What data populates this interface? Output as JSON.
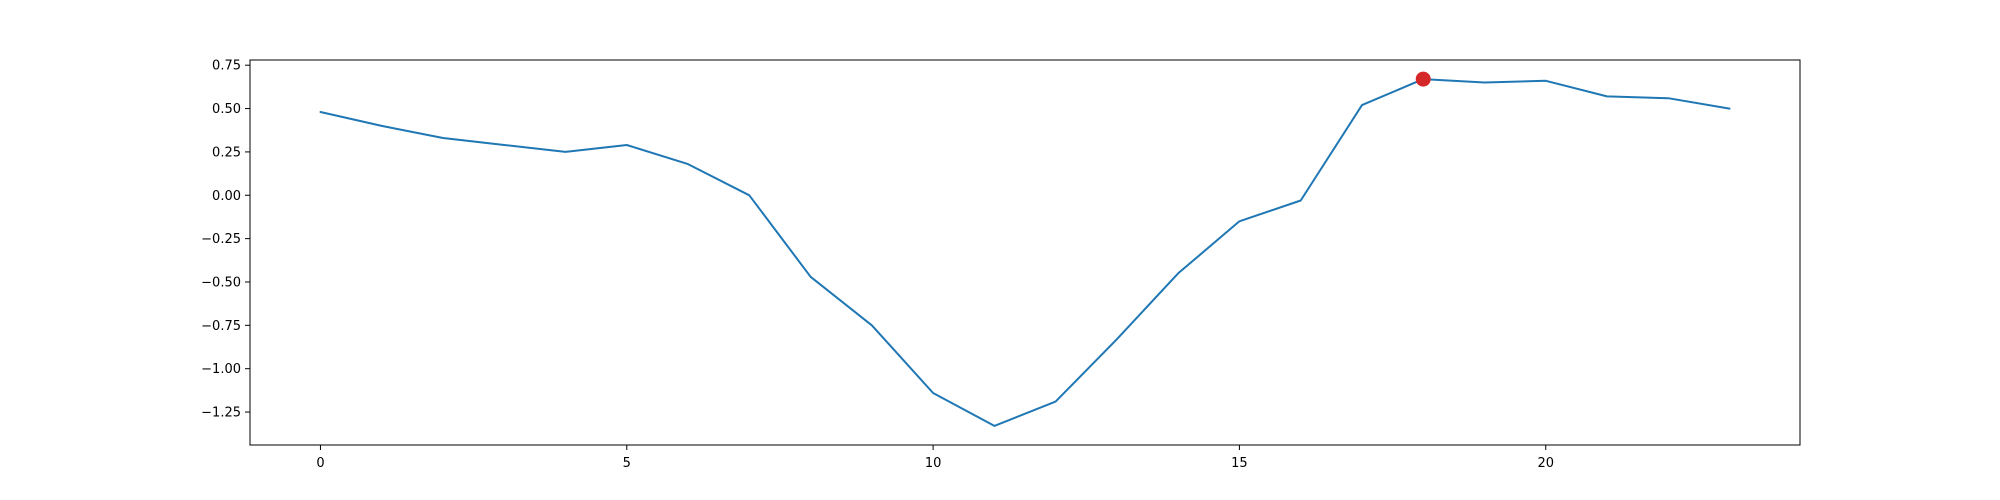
{
  "chart_data": {
    "type": "line",
    "title": "",
    "xlabel": "",
    "ylabel": "",
    "xlim": [
      -1.15,
      24.15
    ],
    "ylim": [
      -1.44,
      0.78
    ],
    "x_ticks": [
      0,
      5,
      10,
      15,
      20
    ],
    "x_tick_labels": [
      "0",
      "5",
      "10",
      "15",
      "20"
    ],
    "y_ticks": [
      0.75,
      0.5,
      0.25,
      0.0,
      -0.25,
      -0.5,
      -0.75,
      -1.0,
      -1.25
    ],
    "y_tick_labels": [
      "0.75",
      "0.50",
      "0.25",
      "0.00",
      "−0.25",
      "−0.50",
      "−0.75",
      "−1.00",
      "−1.25"
    ],
    "grid": false,
    "series": [
      {
        "color": "#1f77b4",
        "x": [
          0,
          1,
          2,
          3,
          4,
          5,
          6,
          7,
          8,
          9,
          10,
          11,
          12,
          13,
          14,
          15,
          16,
          17,
          18,
          19,
          20,
          21,
          22,
          23
        ],
        "values": [
          0.48,
          0.4,
          0.33,
          0.29,
          0.25,
          0.29,
          0.18,
          0.0,
          -0.47,
          -0.75,
          -1.14,
          -1.33,
          -1.19,
          -0.83,
          -0.45,
          -0.15,
          -0.03,
          0.52,
          0.67,
          0.65,
          0.66,
          0.57,
          0.56,
          0.5
        ]
      }
    ],
    "highlight": {
      "x": 18,
      "y": 0.67,
      "color": "#d62728"
    }
  }
}
